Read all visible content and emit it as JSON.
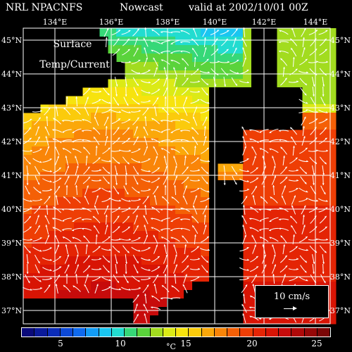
{
  "header": {
    "source": "NRL  NPACNFS",
    "product": "Nowcast",
    "valid": "valid at 2002/10/01 00Z"
  },
  "overlay": {
    "line1": "Surface",
    "line2": "Temp/Current"
  },
  "axes": {
    "lon_labels": [
      "134°E",
      "136°E",
      "138°E",
      "140°E",
      "142°E",
      "144°E"
    ],
    "lat_labels": [
      "45°N",
      "44°N",
      "43°N",
      "42°N",
      "41°N",
      "40°N",
      "39°N",
      "38°N",
      "37°N"
    ]
  },
  "scale": {
    "label": "10 cm/s"
  },
  "colorbar": {
    "tick_labels": [
      "5",
      "10",
      "15",
      "20",
      "25"
    ],
    "unit": "°C",
    "colors": [
      "#0a0a7a",
      "#0a1a9a",
      "#0b2cb8",
      "#0d49d6",
      "#0f6aee",
      "#139cf5",
      "#1ac6f0",
      "#22dcd0",
      "#36d878",
      "#5ad33b",
      "#a2dc1f",
      "#dbea16",
      "#f7e30e",
      "#fbcb0c",
      "#fba80a",
      "#f98508",
      "#f46006",
      "#ee3e05",
      "#e42404",
      "#d81404",
      "#c70b0b",
      "#b00909",
      "#960707",
      "#7a0606"
    ]
  },
  "colors": {
    "land": "#000000",
    "grid": "#ffffff",
    "current_vectors": "#ffffff"
  }
}
